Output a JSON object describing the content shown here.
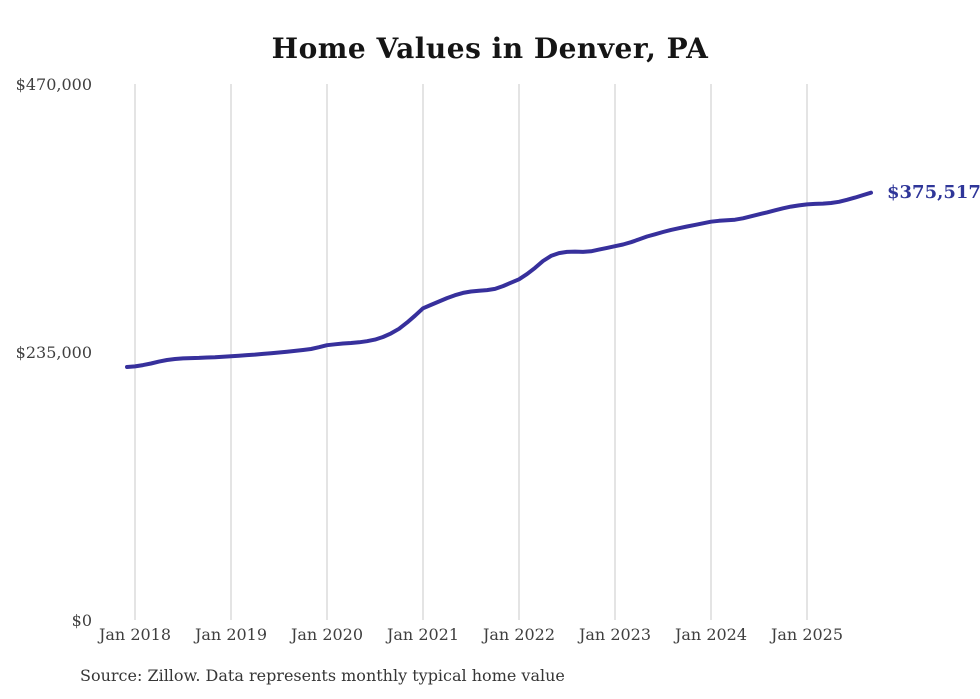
{
  "title": "Home Values in Denver, PA",
  "source_note": "Source: Zillow. Data represents monthly typical home value",
  "colors": {
    "line": "#37309c",
    "end_label": "#2f3699",
    "gridline": "#c9c9c9",
    "axis_text": "#3f3f3f",
    "title_text": "#151515",
    "source_text": "#363636",
    "background": "#ffffff"
  },
  "chart_data": {
    "type": "line",
    "title": "Home Values in Denver, PA",
    "xlabel": "",
    "ylabel": "",
    "grid": "vertical-only",
    "legend": "none",
    "ylim": [
      0,
      470000
    ],
    "y_ticks": [
      {
        "label": "$470,000",
        "value": 470000
      },
      {
        "label": "$235,000",
        "value": 235000
      },
      {
        "label": "$0",
        "value": 0
      }
    ],
    "x_tick_labels": [
      "Jan 2018",
      "Jan 2019",
      "Jan 2020",
      "Jan 2021",
      "Jan 2022",
      "Jan 2023",
      "Jan 2024",
      "Jan 2025"
    ],
    "final_value": 375517,
    "final_value_label": "$375,517",
    "series": [
      {
        "name": "Monthly typical home value",
        "x": [
          "2017-12",
          "2018-01",
          "2018-02",
          "2018-03",
          "2018-04",
          "2018-05",
          "2018-06",
          "2018-07",
          "2018-08",
          "2018-09",
          "2018-10",
          "2018-11",
          "2018-12",
          "2019-01",
          "2019-02",
          "2019-03",
          "2019-04",
          "2019-05",
          "2019-06",
          "2019-07",
          "2019-08",
          "2019-09",
          "2019-10",
          "2019-11",
          "2019-12",
          "2020-01",
          "2020-02",
          "2020-03",
          "2020-04",
          "2020-05",
          "2020-06",
          "2020-07",
          "2020-08",
          "2020-09",
          "2020-10",
          "2020-11",
          "2020-12",
          "2021-01",
          "2021-02",
          "2021-03",
          "2021-04",
          "2021-05",
          "2021-06",
          "2021-07",
          "2021-08",
          "2021-09",
          "2021-10",
          "2021-11",
          "2021-12",
          "2022-01",
          "2022-02",
          "2022-03",
          "2022-04",
          "2022-05",
          "2022-06",
          "2022-07",
          "2022-08",
          "2022-09",
          "2022-10",
          "2022-11",
          "2022-12",
          "2023-01",
          "2023-02",
          "2023-03",
          "2023-04",
          "2023-05",
          "2023-06",
          "2023-07",
          "2023-08",
          "2023-09",
          "2023-10",
          "2023-11",
          "2023-12",
          "2024-01",
          "2024-02",
          "2024-03",
          "2024-04",
          "2024-05",
          "2024-06",
          "2024-07",
          "2024-08",
          "2024-09",
          "2024-10",
          "2024-11",
          "2024-12",
          "2025-01",
          "2025-02",
          "2025-03",
          "2025-04",
          "2025-05",
          "2025-06",
          "2025-07",
          "2025-08",
          "2025-09"
        ],
        "values": [
          222500,
          223000,
          224200,
          225600,
          227200,
          228600,
          229500,
          230000,
          230300,
          230500,
          230800,
          231100,
          231500,
          232000,
          232400,
          232900,
          233400,
          234000,
          234600,
          235200,
          235900,
          236600,
          237400,
          238300,
          239900,
          241600,
          242400,
          243100,
          243600,
          244200,
          245100,
          246500,
          248800,
          252000,
          256000,
          261500,
          267500,
          274000,
          277000,
          280000,
          283000,
          285500,
          287500,
          288800,
          289500,
          290000,
          291000,
          293500,
          296500,
          299500,
          304000,
          309500,
          315500,
          320000,
          322500,
          323500,
          323800,
          323500,
          324000,
          325500,
          327000,
          328500,
          330000,
          332000,
          334500,
          337000,
          339000,
          341000,
          342800,
          344300,
          345800,
          347200,
          348600,
          350000,
          350800,
          351300,
          351800,
          353000,
          354800,
          356500,
          358200,
          360000,
          361800,
          363300,
          364300,
          365200,
          365600,
          365900,
          366400,
          367500,
          369200,
          371200,
          373400,
          375517
        ]
      }
    ]
  }
}
